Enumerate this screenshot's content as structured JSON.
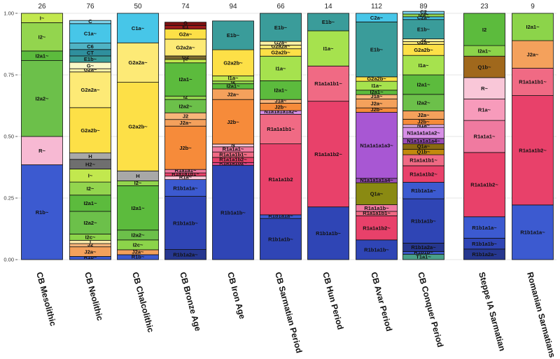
{
  "chart_data": {
    "type": "bar",
    "stacked": true,
    "ylim": [
      0,
      1
    ],
    "yticks": [
      "0.00",
      "0.25",
      "0.50",
      "0.75",
      "1.00"
    ],
    "grid": true,
    "legend": "none",
    "columns": [
      {
        "category": "CB Mesolithic",
        "count": "26",
        "segments": [
          {
            "label": "R1b~",
            "value": 0.385,
            "color": "#3c5ad0"
          },
          {
            "label": "R~",
            "value": 0.115,
            "color": "#f7b9d3"
          },
          {
            "label": "I2a2~",
            "value": 0.308,
            "color": "#6cc04a"
          },
          {
            "label": "I2a1~",
            "value": 0.039,
            "color": "#5cbb3d"
          },
          {
            "label": "I2~",
            "value": 0.115,
            "color": "#93d54e"
          },
          {
            "label": "I~",
            "value": 0.038,
            "color": "#c2e84e"
          }
        ]
      },
      {
        "category": "CB Neolithic",
        "count": "76",
        "segments": [
          {
            "label": "R1b~",
            "value": 0.013,
            "color": "#3c5ad0"
          },
          {
            "label": "J2a~",
            "value": 0.039,
            "color": "#f4a15c"
          },
          {
            "label": "J2",
            "value": 0.013,
            "color": "#f7b57a"
          },
          {
            "label": "I",
            "value": 0.013,
            "color": "#fbe7a8"
          },
          {
            "label": "I2c~",
            "value": 0.026,
            "color": "#8cd44a"
          },
          {
            "label": "I2a2~",
            "value": 0.092,
            "color": "#6cc04a"
          },
          {
            "label": "I2a1~",
            "value": 0.066,
            "color": "#5cbb3d"
          },
          {
            "label": "I2~",
            "value": 0.053,
            "color": "#93d54e"
          },
          {
            "label": "I~",
            "value": 0.053,
            "color": "#c2e84e"
          },
          {
            "label": "H2~",
            "value": 0.039,
            "color": "#6f6f6f"
          },
          {
            "label": "H",
            "value": 0.026,
            "color": "#a8a8a8"
          },
          {
            "label": "G2a2b~",
            "value": 0.184,
            "color": "#fde047"
          },
          {
            "label": "G2a2a~",
            "value": 0.145,
            "color": "#fdea76"
          },
          {
            "label": "G2a~",
            "value": 0.013,
            "color": "#fff2a6"
          },
          {
            "label": "G~",
            "value": 0.026,
            "color": "#fbf8c8"
          },
          {
            "label": "E1b~",
            "value": 0.026,
            "color": "#3a9c9a"
          },
          {
            "label": "CT",
            "value": 0.026,
            "color": "#2f8f9d"
          },
          {
            "label": "C6",
            "value": 0.026,
            "color": "#4fb3c4"
          },
          {
            "label": "C1a~",
            "value": 0.079,
            "color": "#47c6e8"
          },
          {
            "label": "C",
            "value": 0.013,
            "color": "#7fd3ec"
          }
        ]
      },
      {
        "category": "CB Chalcolithic",
        "count": "50",
        "segments": [
          {
            "label": "R1b~",
            "value": 0.02,
            "color": "#3c5ad0"
          },
          {
            "label": "J2a~",
            "value": 0.02,
            "color": "#f4a15c"
          },
          {
            "label": "I2c~",
            "value": 0.04,
            "color": "#8cd44a"
          },
          {
            "label": "I2a2~",
            "value": 0.04,
            "color": "#6cc04a"
          },
          {
            "label": "I2a1~",
            "value": 0.18,
            "color": "#5cbb3d"
          },
          {
            "label": "I2~",
            "value": 0.02,
            "color": "#93d54e"
          },
          {
            "label": "H",
            "value": 0.04,
            "color": "#a8a8a8"
          },
          {
            "label": "G2a2b~",
            "value": 0.36,
            "color": "#fde047"
          },
          {
            "label": "G2a2a~",
            "value": 0.16,
            "color": "#fdea76"
          },
          {
            "label": "C1a~",
            "value": 0.12,
            "color": "#47c6e8"
          }
        ]
      },
      {
        "category": "CB Bronze Age",
        "count": "74",
        "segments": [
          {
            "label": "R1b1a2a~",
            "value": 0.041,
            "color": "#26378f"
          },
          {
            "label": "R1b1a1b~",
            "value": 0.216,
            "color": "#2f45b5"
          },
          {
            "label": "R1b1a1a~",
            "value": 0.068,
            "color": "#3c5ad0"
          },
          {
            "label": "R1a~",
            "value": 0.014,
            "color": "#f9c7d8"
          },
          {
            "label": "R1a1a1b1~",
            "value": 0.013,
            "color": "#e8416a"
          },
          {
            "label": "R1a1a1~",
            "value": 0.014,
            "color": "#f07aa0"
          },
          {
            "label": "J2b~",
            "value": 0.176,
            "color": "#f68b3a"
          },
          {
            "label": "J2a~",
            "value": 0.027,
            "color": "#f4a15c"
          },
          {
            "label": "J2",
            "value": 0.027,
            "color": "#f7b57a"
          },
          {
            "label": "I2a2~",
            "value": 0.054,
            "color": "#6cc04a"
          },
          {
            "label": "I2",
            "value": 0.014,
            "color": "#93d54e"
          },
          {
            "label": "I2a1~",
            "value": 0.135,
            "color": "#5cbb3d"
          },
          {
            "label": "I~",
            "value": 0.014,
            "color": "#c2e84e"
          },
          {
            "label": "G2",
            "value": 0.014,
            "color": "#7a6a2f"
          },
          {
            "label": "G2a2a~",
            "value": 0.068,
            "color": "#fdea76"
          },
          {
            "label": "G2a~",
            "value": 0.041,
            "color": "#fde047"
          },
          {
            "label": "E1",
            "value": 0.014,
            "color": "#9b1b1b"
          },
          {
            "label": "G",
            "value": 0.014,
            "color": "#7a1010"
          }
        ]
      },
      {
        "category": "CB Iron Age",
        "count": "94",
        "segments": [
          {
            "label": "R1b1a1b~",
            "value": 0.383,
            "color": "#2f45b5"
          },
          {
            "label": "R1a1a1b2~",
            "value": 0.011,
            "color": "#e84a8a"
          },
          {
            "label": "R1a1a1b2~",
            "value": 0.021,
            "color": "#e8416a"
          },
          {
            "label": "R1a1a1b1~",
            "value": 0.022,
            "color": "#f06a84"
          },
          {
            "label": "R1a1a1~",
            "value": 0.021,
            "color": "#f07aa0"
          },
          {
            "label": "N",
            "value": 0.011,
            "color": "#f9c7d8"
          },
          {
            "label": "J2b~",
            "value": 0.181,
            "color": "#f68b3a"
          },
          {
            "label": "J2a~",
            "value": 0.043,
            "color": "#f4a15c"
          },
          {
            "label": "I2a1~",
            "value": 0.021,
            "color": "#5cbb3d"
          },
          {
            "label": "I2",
            "value": 0.011,
            "color": "#93d54e"
          },
          {
            "label": "I1a~",
            "value": 0.021,
            "color": "#c2e84e"
          },
          {
            "label": "G2a2b~",
            "value": 0.106,
            "color": "#fde047"
          },
          {
            "label": "E1b~",
            "value": 0.117,
            "color": "#3a9c9a"
          }
        ]
      },
      {
        "category": "CB Sarmatian Period",
        "count": "66",
        "segments": [
          {
            "label": "R1b1a1b~",
            "value": 0.167,
            "color": "#2f45b5"
          },
          {
            "label": "R1b1a1a~",
            "value": 0.015,
            "color": "#3c5ad0"
          },
          {
            "label": "R1a1a1b2",
            "value": 0.288,
            "color": "#e8416a"
          },
          {
            "label": "R1a1a1b1~",
            "value": 0.12,
            "color": "#f06a84"
          },
          {
            "label": "N1a1a1a1a2~",
            "value": 0.015,
            "color": "#d78fe6"
          },
          {
            "label": "J2b~",
            "value": 0.03,
            "color": "#f68b3a"
          },
          {
            "label": "J1a~",
            "value": 0.015,
            "color": "#f7b57a"
          },
          {
            "label": "I2a1~",
            "value": 0.076,
            "color": "#5cbb3d"
          },
          {
            "label": "I1a~",
            "value": 0.1,
            "color": "#a6e24e"
          },
          {
            "label": "G2a2b~",
            "value": 0.03,
            "color": "#fde047"
          },
          {
            "label": "G2a2a~",
            "value": 0.015,
            "color": "#fdea76"
          },
          {
            "label": "G2a~",
            "value": 0.015,
            "color": "#fff2a6"
          },
          {
            "label": "E1b~",
            "value": 0.114,
            "color": "#3a9c9a"
          }
        ]
      },
      {
        "category": "CB Hun Period",
        "count": "14",
        "segments": [
          {
            "label": "R1b1a1b~",
            "value": 0.214,
            "color": "#2f45b5"
          },
          {
            "label": "R1a1a1b2~",
            "value": 0.429,
            "color": "#e8416a"
          },
          {
            "label": "R1a1a1b1~",
            "value": 0.143,
            "color": "#f06a84"
          },
          {
            "label": "I1a~",
            "value": 0.143,
            "color": "#a6e24e"
          },
          {
            "label": "E1b~",
            "value": 0.071,
            "color": "#3a9c9a"
          }
        ]
      },
      {
        "category": "CB Avar Period",
        "count": "112",
        "segments": [
          {
            "label": "R1b1a1b~",
            "value": 0.08,
            "color": "#2f45b5"
          },
          {
            "label": "R1a1a1b2~",
            "value": 0.098,
            "color": "#e8416a"
          },
          {
            "label": "R1a1a1b1~",
            "value": 0.018,
            "color": "#f06a84"
          },
          {
            "label": "R1a1a1b~",
            "value": 0.027,
            "color": "#f07aa0"
          },
          {
            "label": "Q1a~",
            "value": 0.089,
            "color": "#8a8a12"
          },
          {
            "label": "N1a1a1a1a4~",
            "value": 0.018,
            "color": "#9b4db8"
          },
          {
            "label": "N1a1a1a1a3~",
            "value": 0.268,
            "color": "#a857d3"
          },
          {
            "label": "J2b~",
            "value": 0.018,
            "color": "#f68b3a"
          },
          {
            "label": "J2a~",
            "value": 0.036,
            "color": "#f4a15c"
          },
          {
            "label": "J1a~",
            "value": 0.018,
            "color": "#f7b57a"
          },
          {
            "label": "I2a1~",
            "value": 0.018,
            "color": "#5cbb3d"
          },
          {
            "label": "I1a~",
            "value": 0.036,
            "color": "#a6e24e"
          },
          {
            "label": "G2a2b~",
            "value": 0.018,
            "color": "#fde047"
          },
          {
            "label": "E1b~",
            "value": 0.223,
            "color": "#3a9c9a"
          },
          {
            "label": "C2a~",
            "value": 0.035,
            "color": "#47c6e8"
          }
        ]
      },
      {
        "category": "CB Conquer Period",
        "count": "89",
        "segments": [
          {
            "label": "T1a1~",
            "value": 0.022,
            "color": "#4aa089"
          },
          {
            "label": "R1b1b~",
            "value": 0.011,
            "color": "#3c5ad0"
          },
          {
            "label": "R1b1a2a~",
            "value": 0.034,
            "color": "#26378f"
          },
          {
            "label": "R1b1a1b~",
            "value": 0.18,
            "color": "#2f45b5"
          },
          {
            "label": "R1b1a1a~",
            "value": 0.067,
            "color": "#3c5ad0"
          },
          {
            "label": "R1a1a1b2~",
            "value": 0.067,
            "color": "#e8416a"
          },
          {
            "label": "R1a1a1b1~",
            "value": 0.045,
            "color": "#f06a84"
          },
          {
            "label": "Q1b~",
            "value": 0.022,
            "color": "#c28a0c"
          },
          {
            "label": "Q1a~",
            "value": 0.022,
            "color": "#8a6a12"
          },
          {
            "label": "N1a1a1a1a4~",
            "value": 0.022,
            "color": "#9b4db8"
          },
          {
            "label": "N1a1a1a1a2~",
            "value": 0.045,
            "color": "#d78fe6"
          },
          {
            "label": "N1a~",
            "value": 0.011,
            "color": "#e6b3ef"
          },
          {
            "label": "J2b~",
            "value": 0.022,
            "color": "#f68b3a"
          },
          {
            "label": "J2a~",
            "value": 0.034,
            "color": "#f4a15c"
          },
          {
            "label": "I2a2~",
            "value": 0.067,
            "color": "#6cc04a"
          },
          {
            "label": "I2a1~",
            "value": 0.079,
            "color": "#5cbb3d"
          },
          {
            "label": "I1a~",
            "value": 0.079,
            "color": "#a6e24e"
          },
          {
            "label": "G2a2b~",
            "value": 0.045,
            "color": "#fde047"
          },
          {
            "label": "G2a~",
            "value": 0.011,
            "color": "#fdea76"
          },
          {
            "label": "J2",
            "value": 0.011,
            "color": "#fff2a6"
          },
          {
            "label": "E1b~",
            "value": 0.079,
            "color": "#3a9c9a"
          },
          {
            "label": "C2a~",
            "value": 0.011,
            "color": "#47c6e8"
          },
          {
            "label": "I2a~",
            "value": 0.011,
            "color": "#93d54e"
          },
          {
            "label": "C2",
            "value": 0.011,
            "color": "#7fd3ec"
          }
        ]
      },
      {
        "category": "Steppe IA Sarmatian",
        "count": "23",
        "segments": [
          {
            "label": "R1b1a2a~",
            "value": 0.043,
            "color": "#26378f"
          },
          {
            "label": "R1b1a1b~",
            "value": 0.044,
            "color": "#2f45b5"
          },
          {
            "label": "R1b1a1a~",
            "value": 0.087,
            "color": "#3c5ad0"
          },
          {
            "label": "R1a1a1b2~",
            "value": 0.261,
            "color": "#e8416a"
          },
          {
            "label": "R1a1a1~",
            "value": 0.13,
            "color": "#f07aa0"
          },
          {
            "label": "R1a~",
            "value": 0.087,
            "color": "#f79bbb"
          },
          {
            "label": "R~",
            "value": 0.087,
            "color": "#f9c7d8"
          },
          {
            "label": "Q1b~",
            "value": 0.087,
            "color": "#a0681c"
          },
          {
            "label": "I2a1~",
            "value": 0.043,
            "color": "#8cd44a"
          },
          {
            "label": "I2",
            "value": 0.131,
            "color": "#5cbb3d"
          }
        ]
      },
      {
        "category": "Romanian Sarmatians",
        "count": "9",
        "segments": [
          {
            "label": "R1b1a1a~",
            "value": 0.222,
            "color": "#3c5ad0"
          },
          {
            "label": "R1a1a1b2~",
            "value": 0.444,
            "color": "#e8416a"
          },
          {
            "label": "R1a1a1b1~",
            "value": 0.111,
            "color": "#f06a84"
          },
          {
            "label": "J2a~",
            "value": 0.112,
            "color": "#f4a15c"
          },
          {
            "label": "I2a1~",
            "value": 0.111,
            "color": "#8cd44a"
          }
        ]
      }
    ]
  }
}
